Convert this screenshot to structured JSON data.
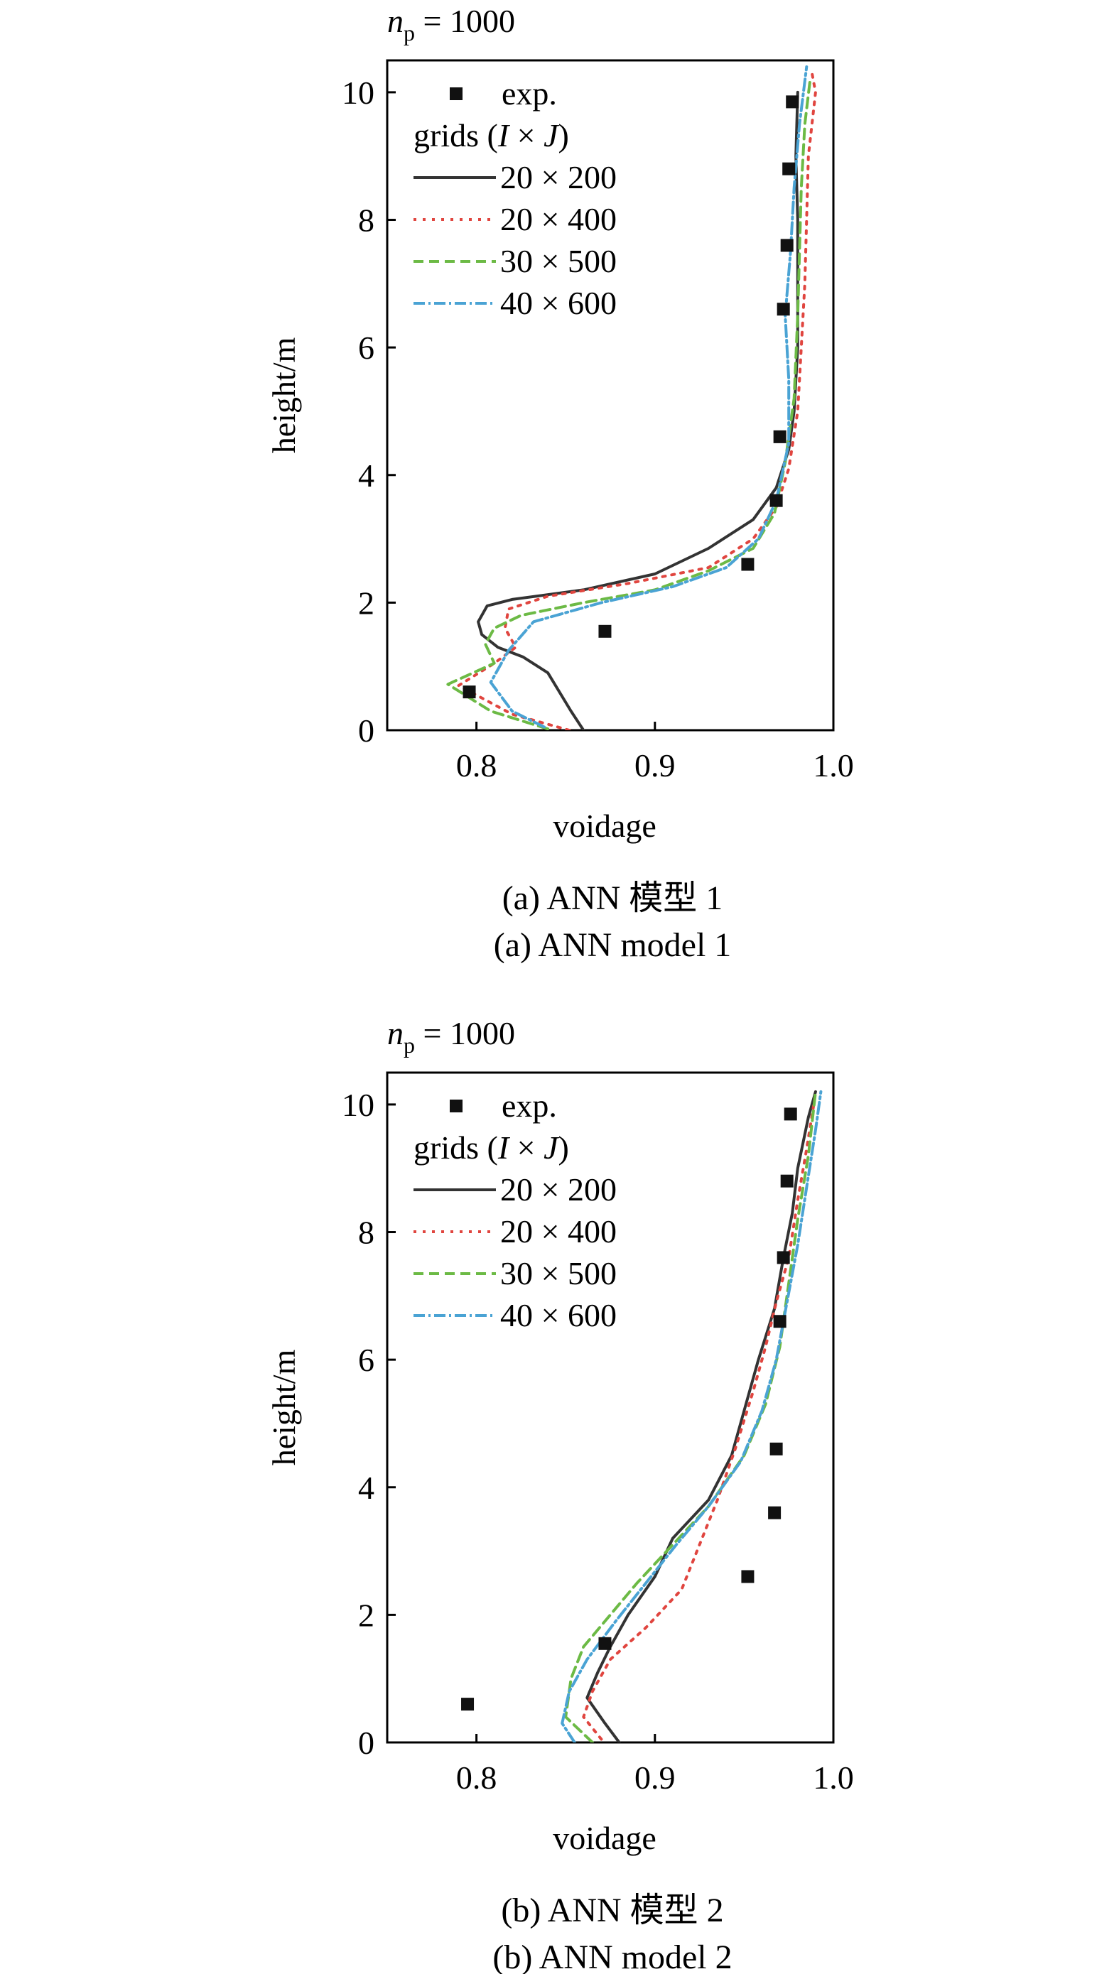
{
  "chart_data": [
    {
      "type": "line",
      "header": {
        "var": "n",
        "sub": "p",
        "rest": " = 1000"
      },
      "xlabel": "voidage",
      "ylabel": "height/m",
      "xlim": [
        0.75,
        1.0
      ],
      "ylim": [
        0,
        10.5
      ],
      "xticks": [
        "0.8",
        "0.9",
        "1.0"
      ],
      "yticks": [
        "0",
        "2",
        "4",
        "6",
        "8",
        "10"
      ],
      "legend_position": "top-left",
      "legend": {
        "exp_label": "exp.",
        "grids_label": {
          "pre": "grids (",
          "i": "I",
          "mid": " × ",
          "j": "J",
          "post": ")"
        }
      },
      "exp": {
        "name": "exp.",
        "points": [
          [
            0.796,
            0.6
          ],
          [
            0.872,
            1.55
          ],
          [
            0.952,
            2.6
          ],
          [
            0.968,
            3.6
          ],
          [
            0.97,
            4.6
          ],
          [
            0.972,
            6.6
          ],
          [
            0.974,
            7.6
          ],
          [
            0.975,
            8.8
          ],
          [
            0.977,
            9.85
          ]
        ]
      },
      "series": [
        {
          "name": "20 × 200",
          "color": "#333333",
          "dash": "",
          "points": [
            [
              0.86,
              0.0
            ],
            [
              0.853,
              0.3
            ],
            [
              0.84,
              0.9
            ],
            [
              0.826,
              1.15
            ],
            [
              0.812,
              1.3
            ],
            [
              0.803,
              1.5
            ],
            [
              0.801,
              1.7
            ],
            [
              0.806,
              1.95
            ],
            [
              0.82,
              2.05
            ],
            [
              0.86,
              2.2
            ],
            [
              0.9,
              2.45
            ],
            [
              0.93,
              2.85
            ],
            [
              0.955,
              3.3
            ],
            [
              0.968,
              3.8
            ],
            [
              0.975,
              4.4
            ],
            [
              0.978,
              5.0
            ],
            [
              0.98,
              6.0
            ],
            [
              0.98,
              7.0
            ],
            [
              0.98,
              8.0
            ],
            [
              0.979,
              9.0
            ],
            [
              0.98,
              10.0
            ]
          ]
        },
        {
          "name": "20 × 400",
          "color": "#e0453f",
          "dash": "4 9",
          "points": [
            [
              0.852,
              0.0
            ],
            [
              0.82,
              0.25
            ],
            [
              0.79,
              0.7
            ],
            [
              0.81,
              1.05
            ],
            [
              0.822,
              1.3
            ],
            [
              0.816,
              1.6
            ],
            [
              0.818,
              1.9
            ],
            [
              0.84,
              2.1
            ],
            [
              0.885,
              2.3
            ],
            [
              0.93,
              2.55
            ],
            [
              0.955,
              3.0
            ],
            [
              0.968,
              3.5
            ],
            [
              0.975,
              4.1
            ],
            [
              0.98,
              5.0
            ],
            [
              0.982,
              6.0
            ],
            [
              0.984,
              7.0
            ],
            [
              0.985,
              8.0
            ],
            [
              0.986,
              9.0
            ],
            [
              0.99,
              10.0
            ],
            [
              0.988,
              10.3
            ]
          ]
        },
        {
          "name": "30 × 500",
          "color": "#6cba45",
          "dash": "14 8",
          "points": [
            [
              0.84,
              0.02
            ],
            [
              0.808,
              0.3
            ],
            [
              0.784,
              0.72
            ],
            [
              0.81,
              1.05
            ],
            [
              0.805,
              1.35
            ],
            [
              0.81,
              1.6
            ],
            [
              0.825,
              1.8
            ],
            [
              0.86,
              2.0
            ],
            [
              0.9,
              2.2
            ],
            [
              0.93,
              2.5
            ],
            [
              0.955,
              2.85
            ],
            [
              0.967,
              3.4
            ],
            [
              0.973,
              4.2
            ],
            [
              0.978,
              5.2
            ],
            [
              0.98,
              6.5
            ],
            [
              0.981,
              7.5
            ],
            [
              0.982,
              8.5
            ],
            [
              0.984,
              9.5
            ],
            [
              0.987,
              10.2
            ]
          ]
        },
        {
          "name": "40 × 600",
          "color": "#4aa3d4",
          "dash": "16 5 3 5",
          "points": [
            [
              0.838,
              0.05
            ],
            [
              0.82,
              0.3
            ],
            [
              0.808,
              0.75
            ],
            [
              0.818,
              1.25
            ],
            [
              0.832,
              1.7
            ],
            [
              0.87,
              2.0
            ],
            [
              0.91,
              2.25
            ],
            [
              0.94,
              2.55
            ],
            [
              0.958,
              3.0
            ],
            [
              0.968,
              3.6
            ],
            [
              0.975,
              4.5
            ],
            [
              0.975,
              5.5
            ],
            [
              0.973,
              6.5
            ],
            [
              0.976,
              7.5
            ],
            [
              0.978,
              8.5
            ],
            [
              0.981,
              9.5
            ],
            [
              0.985,
              10.4
            ]
          ]
        }
      ],
      "caption_zh": "(a) ANN 模型 1",
      "caption_en": "(a) ANN model 1"
    },
    {
      "type": "line",
      "header": {
        "var": "n",
        "sub": "p",
        "rest": " = 1000"
      },
      "xlabel": "voidage",
      "ylabel": "height/m",
      "xlim": [
        0.75,
        1.0
      ],
      "ylim": [
        0,
        10.5
      ],
      "xticks": [
        "0.8",
        "0.9",
        "1.0"
      ],
      "yticks": [
        "0",
        "2",
        "4",
        "6",
        "8",
        "10"
      ],
      "legend_position": "top-left",
      "legend": {
        "exp_label": "exp.",
        "grids_label": {
          "pre": "grids (",
          "i": "I",
          "mid": " × ",
          "j": "J",
          "post": ")"
        }
      },
      "exp": {
        "name": "exp.",
        "points": [
          [
            0.795,
            0.6
          ],
          [
            0.872,
            1.55
          ],
          [
            0.952,
            2.6
          ],
          [
            0.967,
            3.6
          ],
          [
            0.968,
            4.6
          ],
          [
            0.97,
            6.6
          ],
          [
            0.972,
            7.6
          ],
          [
            0.974,
            8.8
          ],
          [
            0.976,
            9.85
          ]
        ]
      },
      "series": [
        {
          "name": "20 × 200",
          "color": "#333333",
          "dash": "",
          "points": [
            [
              0.88,
              0.0
            ],
            [
              0.872,
              0.3
            ],
            [
              0.862,
              0.7
            ],
            [
              0.868,
              1.1
            ],
            [
              0.875,
              1.5
            ],
            [
              0.885,
              2.0
            ],
            [
              0.9,
              2.6
            ],
            [
              0.91,
              3.2
            ],
            [
              0.93,
              3.8
            ],
            [
              0.943,
              4.5
            ],
            [
              0.952,
              5.4
            ],
            [
              0.958,
              6.0
            ],
            [
              0.967,
              6.8
            ],
            [
              0.972,
              7.6
            ],
            [
              0.977,
              8.3
            ],
            [
              0.98,
              9.0
            ],
            [
              0.986,
              9.8
            ],
            [
              0.99,
              10.2
            ]
          ]
        },
        {
          "name": "20 × 400",
          "color": "#e0453f",
          "dash": "4 9",
          "points": [
            [
              0.87,
              0.05
            ],
            [
              0.86,
              0.4
            ],
            [
              0.865,
              0.8
            ],
            [
              0.875,
              1.3
            ],
            [
              0.895,
              1.8
            ],
            [
              0.915,
              2.4
            ],
            [
              0.925,
              3.1
            ],
            [
              0.935,
              3.8
            ],
            [
              0.945,
              4.6
            ],
            [
              0.955,
              5.5
            ],
            [
              0.962,
              6.2
            ],
            [
              0.968,
              6.9
            ],
            [
              0.975,
              7.6
            ],
            [
              0.98,
              8.5
            ],
            [
              0.985,
              9.3
            ],
            [
              0.989,
              10.0
            ]
          ]
        },
        {
          "name": "30 × 500",
          "color": "#6cba45",
          "dash": "14 8",
          "points": [
            [
              0.865,
              0.0
            ],
            [
              0.85,
              0.4
            ],
            [
              0.853,
              1.0
            ],
            [
              0.86,
              1.5
            ],
            [
              0.875,
              2.0
            ],
            [
              0.89,
              2.5
            ],
            [
              0.91,
              3.1
            ],
            [
              0.93,
              3.7
            ],
            [
              0.95,
              4.5
            ],
            [
              0.962,
              5.3
            ],
            [
              0.97,
              6.2
            ],
            [
              0.975,
              7.2
            ],
            [
              0.98,
              8.2
            ],
            [
              0.986,
              9.2
            ],
            [
              0.99,
              10.2
            ]
          ]
        },
        {
          "name": "40 × 600",
          "color": "#4aa3d4",
          "dash": "16 5 3 5",
          "points": [
            [
              0.855,
              0.0
            ],
            [
              0.848,
              0.3
            ],
            [
              0.852,
              0.8
            ],
            [
              0.862,
              1.3
            ],
            [
              0.878,
              1.9
            ],
            [
              0.895,
              2.5
            ],
            [
              0.912,
              3.1
            ],
            [
              0.93,
              3.7
            ],
            [
              0.948,
              4.4
            ],
            [
              0.96,
              5.2
            ],
            [
              0.968,
              6.0
            ],
            [
              0.974,
              6.9
            ],
            [
              0.98,
              7.8
            ],
            [
              0.985,
              8.7
            ],
            [
              0.99,
              9.6
            ],
            [
              0.993,
              10.2
            ]
          ]
        }
      ],
      "caption_zh": "(b) ANN 模型 2",
      "caption_en": "(b) ANN model 2"
    }
  ]
}
